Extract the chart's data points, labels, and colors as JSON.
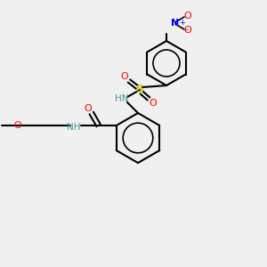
{
  "bg_color": "#f0f0f0",
  "bond_color": "#000000",
  "atom_colors": {
    "O": "#ff0000",
    "N": "#0000ff",
    "S": "#cccc00",
    "H": "#4a9090",
    "C": "#000000"
  },
  "figsize": [
    3.0,
    3.0
  ],
  "dpi": 100
}
